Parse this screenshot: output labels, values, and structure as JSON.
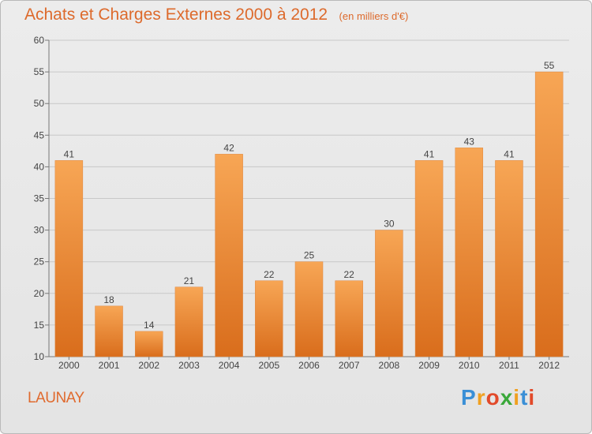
{
  "header": {
    "title": "Achats et Charges Externes 2000 à 2012",
    "unit": "(en milliers d'€)"
  },
  "footer": {
    "place": "LAUNAY",
    "logo_text": "Proxiti"
  },
  "colors": {
    "bar_top": "#f7a655",
    "bar_bottom": "#d96d1c",
    "title": "#dd6a2c",
    "grid": "#c8c8c8"
  },
  "chart_data": {
    "type": "bar",
    "title": "Achats et Charges Externes 2000 à 2012",
    "subtitle": "(en milliers d'€)",
    "categories": [
      "2000",
      "2001",
      "2002",
      "2003",
      "2004",
      "2005",
      "2006",
      "2007",
      "2008",
      "2009",
      "2010",
      "2011",
      "2012"
    ],
    "values": [
      41,
      18,
      14,
      21,
      42,
      22,
      25,
      22,
      30,
      41,
      43,
      41,
      55
    ],
    "ylim": [
      10,
      60
    ],
    "yticks": [
      10,
      15,
      20,
      25,
      30,
      35,
      40,
      45,
      50,
      55,
      60
    ],
    "grid": true,
    "data_labels": true
  }
}
